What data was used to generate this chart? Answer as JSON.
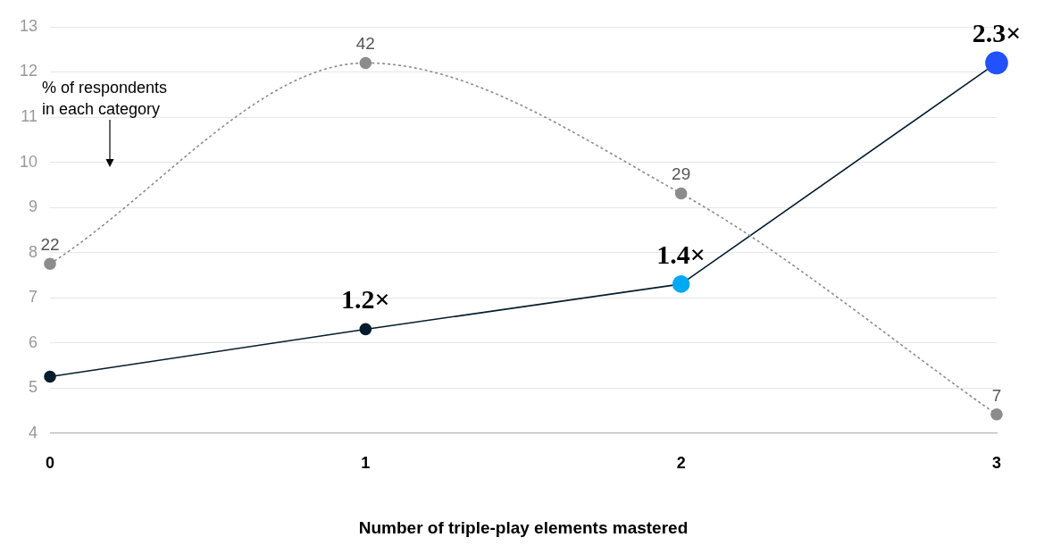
{
  "chart_data": {
    "type": "line",
    "xlabel": "Number of triple-play elements mastered",
    "categories": [
      "0",
      "1",
      "2",
      "3"
    ],
    "series": [
      {
        "axis": "y2",
        "color": "#8c8c8c",
        "line_style": "dotted",
        "values": [
          22,
          42,
          29,
          7
        ],
        "value_labels": [
          "22",
          "42",
          "29",
          "7"
        ]
      },
      {
        "axis": "y",
        "color": "#051c2c",
        "colors": [
          "#051c2c",
          "#051c2c",
          "#00a9f4",
          "#2251ff"
        ],
        "line_style": "solid",
        "values": [
          5.25,
          6.3,
          7.3,
          12.2
        ]
      }
    ],
    "ylim": [
      4,
      13
    ],
    "yticks": [
      4,
      5,
      6,
      7,
      8,
      9,
      10,
      11,
      12,
      13
    ],
    "y2lim": [
      5.15,
      45.6
    ],
    "grid": "y",
    "legend": false,
    "marker": "circle",
    "annotations": [
      "% of respondents\nin each category",
      {
        "text": "1.2×",
        "x": "1",
        "y": 6.3
      },
      {
        "text": "1.4×",
        "x": "2",
        "y": 7.3
      },
      {
        "text": "2.3×",
        "x": "3",
        "y": 12.2
      }
    ]
  }
}
